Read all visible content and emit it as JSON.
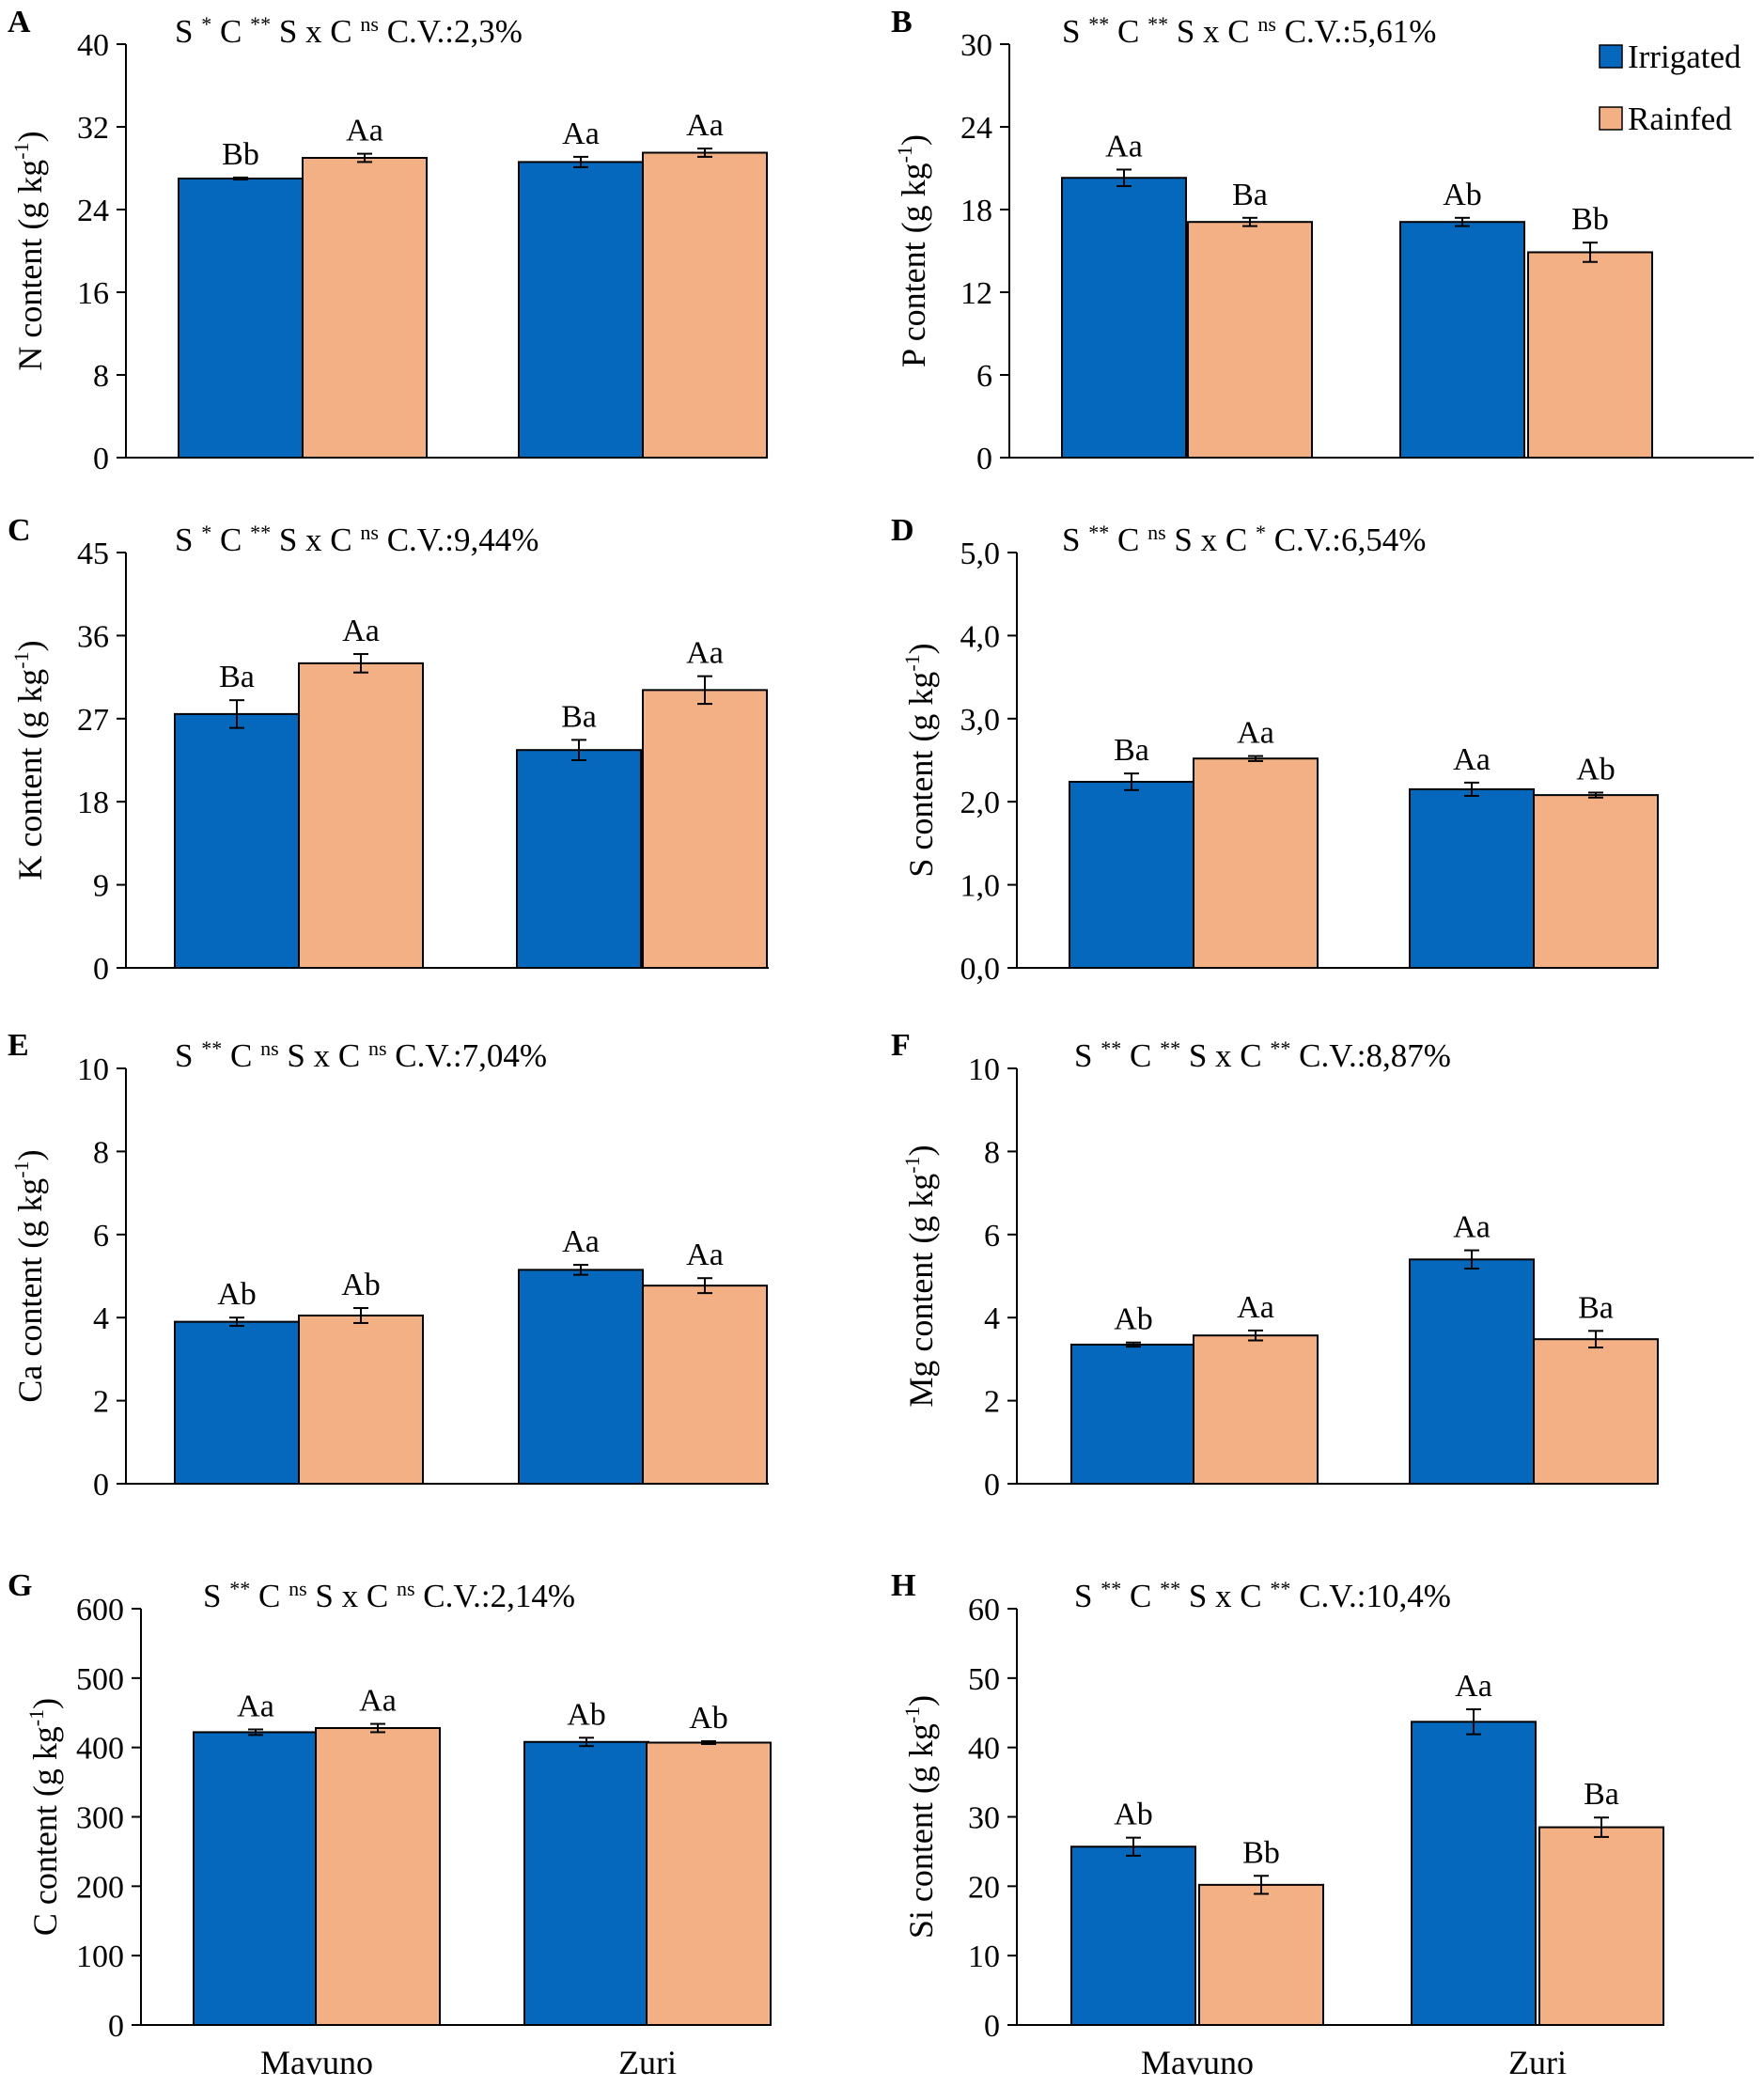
{
  "colors": {
    "irrigated": "#0568BD",
    "rainfed": "#F3B084",
    "axis": "#000000"
  },
  "legend": {
    "placement": "top-right",
    "items": [
      "Irrigated",
      "Rainfed"
    ]
  },
  "chart_data": [
    {
      "type": "bar",
      "panel": "A",
      "title": "",
      "stats": {
        "s": "*",
        "c": "**",
        "sxc": "ns",
        "cv": "C.V.:2,3%"
      },
      "ylabel_main": "N content (g kg",
      "ylabel_sup": "-1",
      "ylabel_close": ")",
      "ylim": [
        0,
        40
      ],
      "yticks": [
        0,
        8,
        16,
        24,
        32,
        40
      ],
      "ytick_labels": [
        "0",
        "8",
        "16",
        "24",
        "32",
        "40"
      ],
      "categories": [
        "Mavuno",
        "Zuri"
      ],
      "series": [
        {
          "name": "Irrigated",
          "values": [
            27.0,
            28.6
          ],
          "errors": [
            0.1,
            0.5
          ],
          "labels": [
            "Bb",
            "Aa"
          ]
        },
        {
          "name": "Rainfed",
          "values": [
            29.0,
            29.5
          ],
          "errors": [
            0.4,
            0.4
          ],
          "labels": [
            "Aa",
            "Aa"
          ]
        }
      ]
    },
    {
      "type": "bar",
      "panel": "B",
      "title": "",
      "stats": {
        "s": "**",
        "c": "**",
        "sxc": "ns",
        "cv": "C.V.:5,61%"
      },
      "ylabel_main": "P content (g kg",
      "ylabel_sup": "-1",
      "ylabel_close": ")",
      "ylim": [
        0,
        30
      ],
      "yticks": [
        0,
        6,
        12,
        18,
        24,
        30
      ],
      "ytick_labels": [
        "0",
        "6",
        "12",
        "18",
        "24",
        "30"
      ],
      "categories": [
        "Mavuno",
        "Zuri"
      ],
      "series": [
        {
          "name": "Irrigated",
          "values": [
            20.3,
            17.1
          ],
          "errors": [
            0.6,
            0.3
          ],
          "labels": [
            "Aa",
            "Ab"
          ]
        },
        {
          "name": "Rainfed",
          "values": [
            17.1,
            14.9
          ],
          "errors": [
            0.3,
            0.7
          ],
          "labels": [
            "Ba",
            "Bb"
          ]
        }
      ]
    },
    {
      "type": "bar",
      "panel": "C",
      "title": "",
      "stats": {
        "s": "*",
        "c": "**",
        "sxc": "ns",
        "cv": "C.V.:9,44%"
      },
      "ylabel_main": "K content (g kg",
      "ylabel_sup": "-1",
      "ylabel_close": ")",
      "ylim": [
        0,
        45
      ],
      "yticks": [
        0,
        9,
        18,
        27,
        36,
        45
      ],
      "ytick_labels": [
        "0",
        "9",
        "18",
        "27",
        "36",
        "45"
      ],
      "categories": [
        "Mavuno",
        "Zuri"
      ],
      "series": [
        {
          "name": "Irrigated",
          "values": [
            27.5,
            23.6
          ],
          "errors": [
            1.5,
            1.1
          ],
          "labels": [
            "Ba",
            "Ba"
          ]
        },
        {
          "name": "Rainfed",
          "values": [
            33.0,
            30.1
          ],
          "errors": [
            1.0,
            1.5
          ],
          "labels": [
            "Aa",
            "Aa"
          ]
        }
      ]
    },
    {
      "type": "bar",
      "panel": "D",
      "title": "",
      "stats": {
        "s": "**",
        "c": "ns",
        "sxc": "*",
        "cv": "C.V.:6,54%"
      },
      "ylabel_main": "S content (g kg",
      "ylabel_sup": "-1",
      "ylabel_close": ")",
      "ylim": [
        0,
        5
      ],
      "yticks": [
        0,
        1,
        2,
        3,
        4,
        5
      ],
      "ytick_labels": [
        "0,0",
        "1,0",
        "2,0",
        "3,0",
        "4,0",
        "5,0"
      ],
      "categories": [
        "Mavuno",
        "Zuri"
      ],
      "series": [
        {
          "name": "Irrigated",
          "values": [
            2.24,
            2.15
          ],
          "errors": [
            0.1,
            0.08
          ],
          "labels": [
            "Ba",
            "Aa"
          ]
        },
        {
          "name": "Rainfed",
          "values": [
            2.52,
            2.08
          ],
          "errors": [
            0.03,
            0.03
          ],
          "labels": [
            "Aa",
            "Ab"
          ]
        }
      ]
    },
    {
      "type": "bar",
      "panel": "E",
      "title": "",
      "stats": {
        "s": "**",
        "c": "ns",
        "sxc": "ns",
        "cv": "C.V.:7,04%"
      },
      "ylabel_main": "Ca content (g kg",
      "ylabel_sup": "-1",
      "ylabel_close": ")",
      "ylim": [
        0,
        10
      ],
      "yticks": [
        0,
        2,
        4,
        6,
        8,
        10
      ],
      "ytick_labels": [
        "0",
        "2",
        "4",
        "6",
        "8",
        "10"
      ],
      "categories": [
        "Mavuno",
        "Zuri"
      ],
      "series": [
        {
          "name": "Irrigated",
          "values": [
            3.9,
            5.15
          ],
          "errors": [
            0.1,
            0.12
          ],
          "labels": [
            "Ab",
            "Aa"
          ]
        },
        {
          "name": "Rainfed",
          "values": [
            4.05,
            4.77
          ],
          "errors": [
            0.18,
            0.18
          ],
          "labels": [
            "Ab",
            "Aa"
          ]
        }
      ]
    },
    {
      "type": "bar",
      "panel": "F",
      "title": "",
      "stats": {
        "s": "**",
        "c": "**",
        "sxc": "**",
        "cv": "C.V.:8,87%"
      },
      "ylabel_main": "Mg content (g kg",
      "ylabel_sup": "-1",
      "ylabel_close": ")",
      "ylim": [
        0,
        10
      ],
      "yticks": [
        0,
        2,
        4,
        6,
        8,
        10
      ],
      "ytick_labels": [
        "0",
        "2",
        "4",
        "6",
        "8",
        "10"
      ],
      "categories": [
        "Mavuno",
        "Zuri"
      ],
      "series": [
        {
          "name": "Irrigated",
          "values": [
            3.35,
            5.4
          ],
          "errors": [
            0.05,
            0.22
          ],
          "labels": [
            "Ab",
            "Aa"
          ]
        },
        {
          "name": "Rainfed",
          "values": [
            3.57,
            3.48
          ],
          "errors": [
            0.12,
            0.2
          ],
          "labels": [
            "Aa",
            "Ba"
          ]
        }
      ]
    },
    {
      "type": "bar",
      "panel": "G",
      "title": "",
      "stats": {
        "s": "**",
        "c": "ns",
        "sxc": "ns",
        "cv": "C.V.:2,14%"
      },
      "ylabel_main": "C content (g kg",
      "ylabel_sup": "-1",
      "ylabel_close": ")",
      "ylim": [
        0,
        600
      ],
      "yticks": [
        0,
        100,
        200,
        300,
        400,
        500,
        600
      ],
      "ytick_labels": [
        "0",
        "100",
        "200",
        "300",
        "400",
        "500",
        "600"
      ],
      "categories": [
        "Mavuno",
        "Zuri"
      ],
      "series": [
        {
          "name": "Irrigated",
          "values": [
            422,
            408
          ],
          "errors": [
            4,
            6
          ],
          "labels": [
            "Aa",
            "Ab"
          ]
        },
        {
          "name": "Rainfed",
          "values": [
            428,
            407
          ],
          "errors": [
            6,
            2
          ],
          "labels": [
            "Aa",
            "Ab"
          ]
        }
      ]
    },
    {
      "type": "bar",
      "panel": "H",
      "title": "",
      "stats": {
        "s": "**",
        "c": "**",
        "sxc": "**",
        "cv": "C.V.:10,4%"
      },
      "ylabel_main": "Si content (g kg",
      "ylabel_sup": "-1",
      "ylabel_close": ")",
      "ylim": [
        0,
        60
      ],
      "yticks": [
        0,
        10,
        20,
        30,
        40,
        50,
        60
      ],
      "ytick_labels": [
        "0",
        "10",
        "20",
        "30",
        "40",
        "50",
        "60"
      ],
      "categories": [
        "Mavuno",
        "Zuri"
      ],
      "series": [
        {
          "name": "Irrigated",
          "values": [
            25.7,
            43.7
          ],
          "errors": [
            1.3,
            1.8
          ],
          "labels": [
            "Ab",
            "Aa"
          ]
        },
        {
          "name": "Rainfed",
          "values": [
            20.2,
            28.5
          ],
          "errors": [
            1.3,
            1.4
          ],
          "labels": [
            "Bb",
            "Ba"
          ]
        }
      ]
    }
  ]
}
